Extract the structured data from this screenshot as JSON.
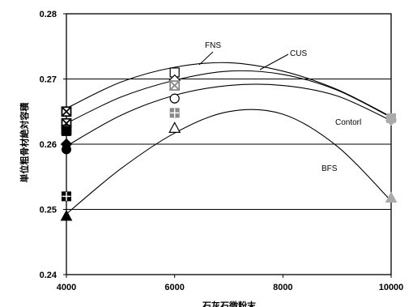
{
  "chart_data": {
    "type": "scatter",
    "title": "",
    "xlabel": "石灰石微粉末",
    "ylabel": "単位粗骨材絶対容積",
    "xlim": [
      4000,
      10000
    ],
    "ylim": [
      0.24,
      0.28
    ],
    "x_ticks": [
      4000,
      6000,
      8000,
      10000
    ],
    "y_ticks": [
      0.24,
      0.25,
      0.26,
      0.27,
      0.28
    ],
    "x_tick_labels": [
      "4000",
      "6000",
      "8000",
      "10000"
    ],
    "y_tick_labels": [
      "0.24",
      "0.25",
      "0.26",
      "0.27",
      "0.28"
    ],
    "grid": "horizontal",
    "curves": [
      {
        "label": "FNS",
        "x": [
          4000,
          5000,
          6000,
          7000,
          8000,
          9000,
          10000
        ],
        "y": [
          0.2655,
          0.2695,
          0.2718,
          0.2725,
          0.2712,
          0.2684,
          0.2642
        ]
      },
      {
        "label": "CUS",
        "x": [
          4000,
          5000,
          6000,
          7000,
          8000,
          9000,
          10000
        ],
        "y": [
          0.2632,
          0.2672,
          0.2698,
          0.2712,
          0.2707,
          0.2683,
          0.2641
        ]
      },
      {
        "label": "Contorl",
        "x": [
          4000,
          5000,
          6000,
          7000,
          8000,
          9000,
          10000
        ],
        "y": [
          0.2597,
          0.2644,
          0.2675,
          0.269,
          0.269,
          0.2674,
          0.2636
        ]
      },
      {
        "label": "BFS",
        "x": [
          4000,
          5000,
          6000,
          7000,
          8000,
          9000,
          10000
        ],
        "y": [
          0.2493,
          0.2562,
          0.2617,
          0.265,
          0.2646,
          0.2597,
          0.2513
        ]
      }
    ],
    "points": [
      {
        "x": 4000,
        "y": 0.265,
        "marker": "x-box",
        "color": "#000000"
      },
      {
        "x": 4000,
        "y": 0.2632,
        "marker": "x-box",
        "color": "#000000"
      },
      {
        "x": 4000,
        "y": 0.2622,
        "marker": "x-box",
        "color": "#000000"
      },
      {
        "x": 4000,
        "y": 0.262,
        "marker": "square",
        "color": "#000000"
      },
      {
        "x": 4000,
        "y": 0.26,
        "marker": "diamond",
        "color": "#000000"
      },
      {
        "x": 4000,
        "y": 0.2592,
        "marker": "circle",
        "color": "#000000"
      },
      {
        "x": 4000,
        "y": 0.252,
        "marker": "plus-box",
        "color": "#000000"
      },
      {
        "x": 4000,
        "y": 0.249,
        "marker": "triangle",
        "color": "#000000"
      },
      {
        "x": 6000,
        "y": 0.271,
        "marker": "square-open",
        "color": "#000000"
      },
      {
        "x": 6000,
        "y": 0.2698,
        "marker": "diamond-open",
        "color": "#000000"
      },
      {
        "x": 6000,
        "y": 0.269,
        "marker": "x-box",
        "color": "#888888"
      },
      {
        "x": 6000,
        "y": 0.267,
        "marker": "circle-open",
        "color": "#000000"
      },
      {
        "x": 6000,
        "y": 0.2648,
        "marker": "plus-box",
        "color": "#888888"
      },
      {
        "x": 6000,
        "y": 0.2625,
        "marker": "triangle-open",
        "color": "#000000"
      },
      {
        "x": 10000,
        "y": 0.264,
        "marker": "square",
        "color": "#aaaaaa"
      },
      {
        "x": 10000,
        "y": 0.2637,
        "marker": "diamond",
        "color": "#aaaaaa"
      },
      {
        "x": 10000,
        "y": 0.2518,
        "marker": "triangle",
        "color": "#aaaaaa"
      }
    ]
  }
}
